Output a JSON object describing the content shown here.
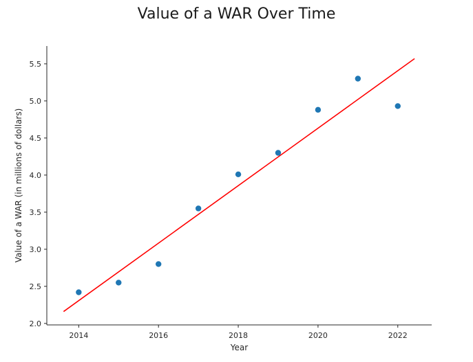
{
  "chart_data": {
    "type": "scatter",
    "title": "Value of a WAR Over Time",
    "xlabel": "Year",
    "ylabel": "Value of a WAR (in millions of dollars)",
    "xlim": [
      2013.2,
      2022.85
    ],
    "ylim": [
      1.98,
      5.74
    ],
    "xticks": [
      2014,
      2016,
      2018,
      2020,
      2022
    ],
    "xtick_labels": [
      "2014",
      "2016",
      "2018",
      "2020",
      "2022"
    ],
    "yticks": [
      2.0,
      2.5,
      3.0,
      3.5,
      4.0,
      4.5,
      5.0,
      5.5
    ],
    "ytick_labels": [
      "2.0",
      "2.5",
      "3.0",
      "3.5",
      "4.0",
      "4.5",
      "5.0",
      "5.5"
    ],
    "grid": false,
    "legend": "none",
    "series": [
      {
        "type": "scatter",
        "color": "#1f77b4",
        "points": [
          {
            "x": 2014,
            "y": 2.42
          },
          {
            "x": 2015,
            "y": 2.55
          },
          {
            "x": 2016,
            "y": 2.8
          },
          {
            "x": 2017,
            "y": 3.55
          },
          {
            "x": 2018,
            "y": 4.01
          },
          {
            "x": 2019,
            "y": 4.3
          },
          {
            "x": 2020,
            "y": 4.88
          },
          {
            "x": 2021,
            "y": 5.3
          },
          {
            "x": 2022,
            "y": 4.93
          }
        ]
      },
      {
        "type": "line",
        "color": "#ff0000",
        "points": [
          {
            "x": 2013.62,
            "y": 2.16
          },
          {
            "x": 2022.42,
            "y": 5.57
          }
        ]
      }
    ]
  }
}
